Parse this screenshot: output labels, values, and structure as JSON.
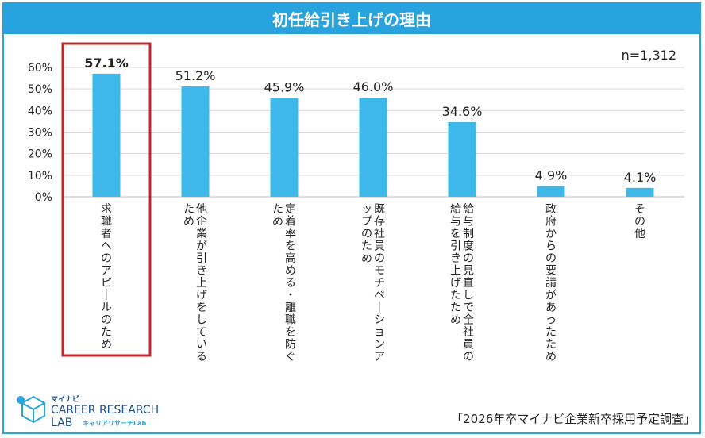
{
  "header": {
    "title": "初任給引き上げの理由"
  },
  "meta": {
    "n": "n=1,312",
    "source": "「2026年卒マイナビ企業新卒採用予定調査」"
  },
  "logo": {
    "brand_small": "マイナビ",
    "line1": "CAREER RESEARCH",
    "line2": "LAB",
    "sub": "キャリアリサーチLab"
  },
  "chart_data": {
    "type": "bar",
    "title": "初任給引き上げの理由",
    "categories": [
      "求職者へのアピールのため",
      "他企業が引き上げをしているため",
      "定着率を高める・離職を防ぐため",
      "既存社員のモチベーションアップのため",
      "給与制度の見直しで全社員の給与を引き上げたため",
      "政府からの要請があったため",
      "その他"
    ],
    "values": [
      57.1,
      51.2,
      45.9,
      46.0,
      34.6,
      4.9,
      4.1
    ],
    "value_labels": [
      "57.1%",
      "51.2%",
      "45.9%",
      "46.0%",
      "34.6%",
      "4.9%",
      "4.1%"
    ],
    "yticks": [
      "0%",
      "10%",
      "20%",
      "30%",
      "40%",
      "50%",
      "60%"
    ],
    "ylim": [
      0,
      60
    ],
    "highlight_index": 0,
    "colors": {
      "bar": "#3db8e8",
      "highlight": "#c0282d",
      "grid": "#d9d9d9",
      "accent": "#29a3dd"
    }
  }
}
